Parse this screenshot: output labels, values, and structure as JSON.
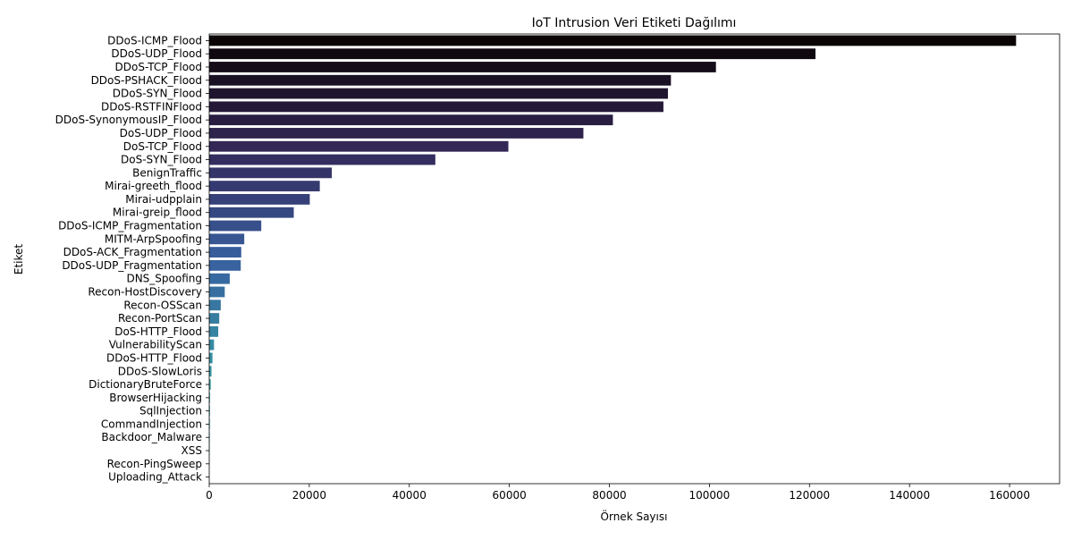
{
  "chart_data": {
    "type": "bar",
    "orientation": "horizontal",
    "title": "IoT Intrusion Veri Etiketi Dağılımı",
    "xlabel": "Örnek Sayısı",
    "ylabel": "Etiket",
    "xlim": [
      0,
      170000
    ],
    "xticks": [
      0,
      20000,
      40000,
      60000,
      80000,
      100000,
      120000,
      140000,
      160000
    ],
    "grid": false,
    "palette": "mako",
    "categories": [
      "DDoS-ICMP_Flood",
      "DDoS-UDP_Flood",
      "DDoS-TCP_Flood",
      "DDoS-PSHACK_Flood",
      "DDoS-SYN_Flood",
      "DDoS-RSTFINFlood",
      "DDoS-SynonymousIP_Flood",
      "DoS-UDP_Flood",
      "DoS-TCP_Flood",
      "DoS-SYN_Flood",
      "BenignTraffic",
      "Mirai-greeth_flood",
      "Mirai-udpplain",
      "Mirai-greip_flood",
      "DDoS-ICMP_Fragmentation",
      "MITM-ArpSpoofing",
      "DDoS-ACK_Fragmentation",
      "DDoS-UDP_Fragmentation",
      "DNS_Spoofing",
      "Recon-HostDiscovery",
      "Recon-OSScan",
      "Recon-PortScan",
      "DoS-HTTP_Flood",
      "VulnerabilityScan",
      "DDoS-HTTP_Flood",
      "DDoS-SlowLoris",
      "DictionaryBruteForce",
      "BrowserHijacking",
      "SqlInjection",
      "CommandInjection",
      "Backdoor_Malware",
      "XSS",
      "Recon-PingSweep",
      "Uploading_Attack"
    ],
    "values": [
      161300,
      121200,
      101300,
      92300,
      91700,
      90800,
      80700,
      74800,
      59800,
      45200,
      24500,
      22100,
      20100,
      16900,
      10400,
      7000,
      6400,
      6300,
      4100,
      3100,
      2300,
      2000,
      1800,
      950,
      650,
      450,
      300,
      150,
      140,
      130,
      110,
      90,
      50,
      30
    ]
  }
}
